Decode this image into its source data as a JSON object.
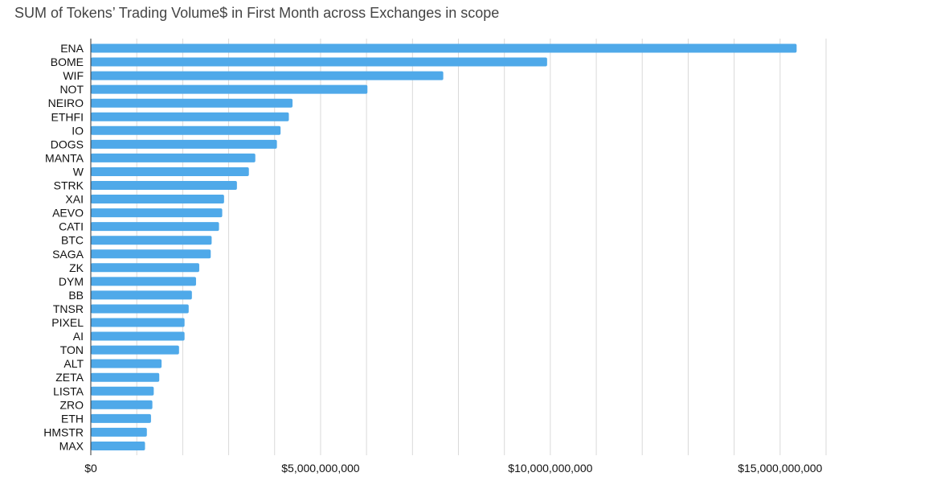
{
  "chart_data": {
    "type": "bar",
    "orientation": "horizontal",
    "title": "SUM of Tokens’ Trading Volume$ in First Month across Exchanges in scope",
    "xlabel": "",
    "ylabel": "",
    "xlim": [
      0,
      16700000000
    ],
    "x_ticks": [
      0,
      5000000000,
      10000000000,
      15000000000
    ],
    "x_tick_labels": [
      "$0",
      "$5,000,000,000",
      "$10,000,000,000",
      "$15,000,000,000"
    ],
    "grid": true,
    "legend": "none",
    "bar_color": "#4fa9e9",
    "categories": [
      "ENA",
      "BOME",
      "WIF",
      "NOT",
      "NEIRO",
      "ETHFI",
      "IO",
      "DOGS",
      "MANTA",
      "W",
      "STRK",
      "XAI",
      "AEVO",
      "CATI",
      "BTC",
      "SAGA",
      "ZK",
      "DYM",
      "BB",
      "TNSR",
      "PIXEL",
      "AI",
      "TON",
      "ALT",
      "ZETA",
      "LISTA",
      "ZRO",
      "ETH",
      "HMSTR",
      "MAX"
    ],
    "values": [
      15360000000,
      9930000000,
      7670000000,
      6020000000,
      4390000000,
      4310000000,
      4130000000,
      4050000000,
      3580000000,
      3440000000,
      3180000000,
      2900000000,
      2860000000,
      2790000000,
      2630000000,
      2610000000,
      2360000000,
      2290000000,
      2200000000,
      2130000000,
      2040000000,
      2040000000,
      1920000000,
      1540000000,
      1490000000,
      1370000000,
      1340000000,
      1310000000,
      1220000000,
      1180000000
    ]
  }
}
